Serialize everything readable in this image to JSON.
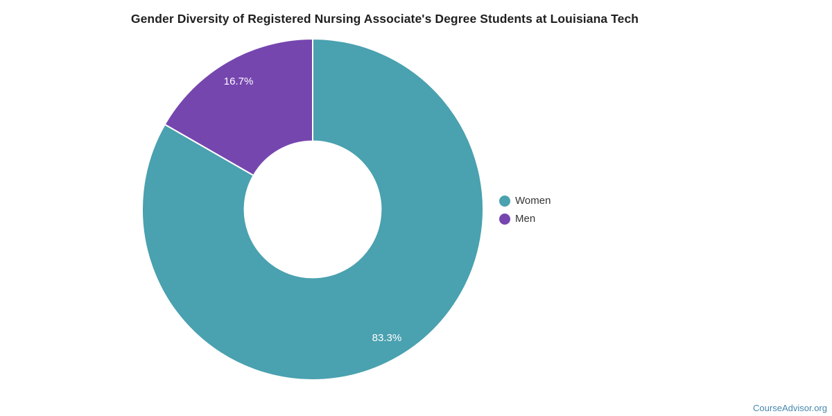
{
  "chart_data": {
    "type": "pie",
    "title": "Gender Diversity of Registered Nursing Associate's Degree Students at Louisiana Tech",
    "categories": [
      "Women",
      "Men"
    ],
    "values": [
      83.3,
      16.7
    ],
    "slice_labels": [
      "83.3%",
      "16.7%"
    ],
    "colors": [
      "#4AA1AF",
      "#7646AF"
    ],
    "legend": [
      "Women",
      "Men"
    ],
    "legend_position": "right",
    "donut": true,
    "donut_hole_ratio": 0.4,
    "start_angle": "top",
    "direction": "clockwise",
    "slice_border_color": "#ffffff"
  },
  "watermark": {
    "text": "CourseAdvisor.org",
    "color": "#4688AE"
  }
}
